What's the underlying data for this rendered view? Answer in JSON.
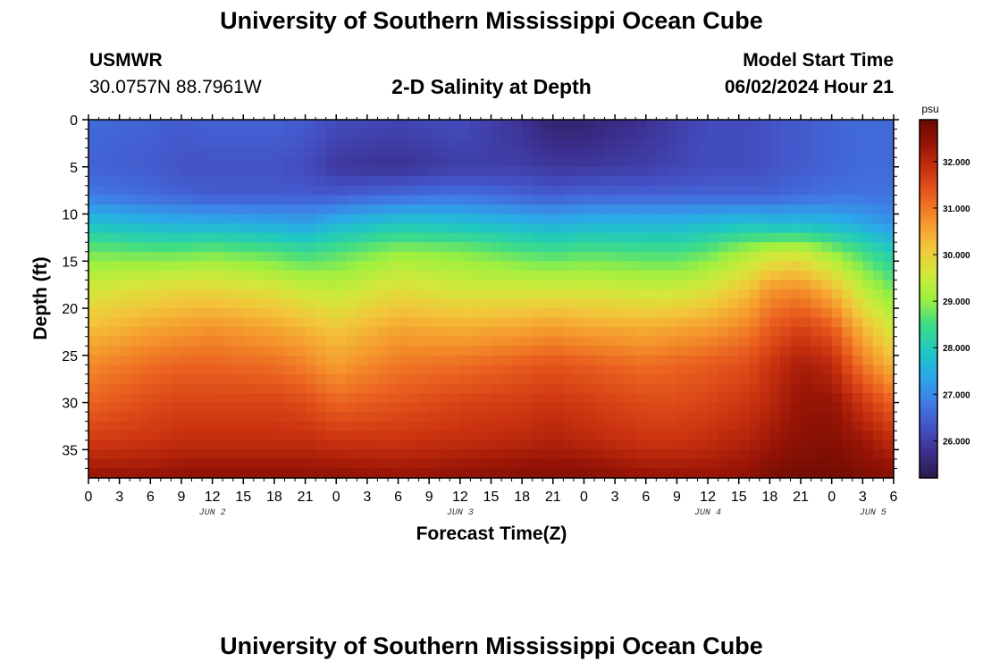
{
  "page": {
    "title": "University of Southern Mississippi Ocean Cube",
    "station_name": "USMWR",
    "station_coords": "30.0757N  88.7961W",
    "plot_name": "2-D Salinity at Depth",
    "model_start_label": "Model Start Time",
    "model_start_value": "06/02/2024 Hour 21",
    "footer_title": "University of Southern Mississippi Ocean Cube"
  },
  "chart_data": {
    "type": "heatmap",
    "title": "2-D Salinity at Depth",
    "xlabel": "Forecast Time(Z)",
    "ylabel": "Depth (ft)",
    "x_ticks": [
      "0",
      "3",
      "6",
      "9",
      "12",
      "15",
      "18",
      "21",
      "0",
      "3",
      "6",
      "9",
      "12",
      "15",
      "18",
      "21",
      "0",
      "3",
      "6",
      "9",
      "12",
      "15",
      "18",
      "21",
      "0",
      "3",
      "6"
    ],
    "x_range_hours": [
      0,
      78
    ],
    "month_labels": [
      {
        "label": "JUN 2",
        "hour": 12
      },
      {
        "label": "JUN 3",
        "hour": 36
      },
      {
        "label": "JUN 4",
        "hour": 60
      },
      {
        "label": "JUN 5",
        "hour": 76
      }
    ],
    "y_ticks": [
      0,
      5,
      10,
      15,
      20,
      25,
      30,
      35
    ],
    "ylim": [
      0,
      38
    ],
    "y_inverted": true,
    "colorbar": {
      "unit": "psu",
      "ticks": [
        "26.000",
        "27.000",
        "28.000",
        "29.000",
        "30.000",
        "31.000",
        "32.000"
      ],
      "vmin": 25.2,
      "vmax": 32.9,
      "colormap": [
        "#2b1a4a",
        "#3b2e8c",
        "#4453c8",
        "#3f7ee6",
        "#2aa9e8",
        "#1fc9c0",
        "#3fdc86",
        "#9ef03f",
        "#d3e83a",
        "#f3c53a",
        "#f5952c",
        "#ea5f1f",
        "#cc3410",
        "#9a1506",
        "#6a0a02"
      ]
    },
    "profile_depths_ft": [
      0,
      5,
      8,
      11,
      14,
      18,
      22,
      26,
      30,
      34,
      38
    ],
    "profile_times_hours": [
      0,
      6,
      9,
      12,
      18,
      21,
      24,
      30,
      36,
      42,
      45,
      48,
      54,
      57,
      60,
      64,
      66,
      69,
      72,
      75,
      78
    ],
    "salinity_psu": [
      [
        26.6,
        26.5,
        26.8,
        27.8,
        28.8,
        29.6,
        30.2,
        30.8,
        31.2,
        31.7,
        32.4
      ],
      [
        26.5,
        26.4,
        26.6,
        27.6,
        28.7,
        29.8,
        30.5,
        31.1,
        31.5,
        31.8,
        32.4
      ],
      [
        26.4,
        26.3,
        26.5,
        27.5,
        28.7,
        29.9,
        30.6,
        31.2,
        31.6,
        31.9,
        32.5
      ],
      [
        26.5,
        26.3,
        26.4,
        27.5,
        28.8,
        29.9,
        30.7,
        31.2,
        31.6,
        31.9,
        32.5
      ],
      [
        26.5,
        26.3,
        26.4,
        27.4,
        28.6,
        29.7,
        30.5,
        31.1,
        31.6,
        31.9,
        32.5
      ],
      [
        26.4,
        26.2,
        26.4,
        27.3,
        28.4,
        29.5,
        30.3,
        30.9,
        31.5,
        31.9,
        32.5
      ],
      [
        26.2,
        25.9,
        26.4,
        27.6,
        28.6,
        29.4,
        30.1,
        30.6,
        31.2,
        31.8,
        32.5
      ],
      [
        26.1,
        25.8,
        26.6,
        27.9,
        29.0,
        29.8,
        30.5,
        31.0,
        31.4,
        31.8,
        32.4
      ],
      [
        26.2,
        26.0,
        26.7,
        27.8,
        28.9,
        29.6,
        30.4,
        31.1,
        31.6,
        31.9,
        32.5
      ],
      [
        25.8,
        26.0,
        26.5,
        27.6,
        28.6,
        29.6,
        30.5,
        31.3,
        31.7,
        32.0,
        32.6
      ],
      [
        25.5,
        25.9,
        26.4,
        27.5,
        28.5,
        29.6,
        30.6,
        31.4,
        31.8,
        32.1,
        32.6
      ],
      [
        25.5,
        25.9,
        26.5,
        27.6,
        28.6,
        29.6,
        30.5,
        31.3,
        31.7,
        32.0,
        32.6
      ],
      [
        25.8,
        26.0,
        26.5,
        27.6,
        28.5,
        29.5,
        30.4,
        31.1,
        31.5,
        31.8,
        32.4
      ],
      [
        26.0,
        26.1,
        26.5,
        27.6,
        28.5,
        29.5,
        30.5,
        31.2,
        31.5,
        31.8,
        32.4
      ],
      [
        26.2,
        26.2,
        26.5,
        27.7,
        28.7,
        29.7,
        30.6,
        31.3,
        31.6,
        31.9,
        32.4
      ],
      [
        26.2,
        26.2,
        26.5,
        27.8,
        29.2,
        30.2,
        30.9,
        31.5,
        31.8,
        32.1,
        32.5
      ],
      [
        26.3,
        26.3,
        26.5,
        27.7,
        29.4,
        30.7,
        31.3,
        31.8,
        32.0,
        32.3,
        32.7
      ],
      [
        26.4,
        26.4,
        26.6,
        27.7,
        29.5,
        30.8,
        31.6,
        32.2,
        32.4,
        32.5,
        32.8
      ],
      [
        26.5,
        26.5,
        26.7,
        27.6,
        29.0,
        30.3,
        31.3,
        32.0,
        32.4,
        32.6,
        32.8
      ],
      [
        26.6,
        26.6,
        26.7,
        27.4,
        28.5,
        29.4,
        30.3,
        31.0,
        31.8,
        32.3,
        32.7
      ],
      [
        26.6,
        26.6,
        26.7,
        27.1,
        28.0,
        28.8,
        29.5,
        30.3,
        31.2,
        31.9,
        32.6
      ]
    ]
  }
}
